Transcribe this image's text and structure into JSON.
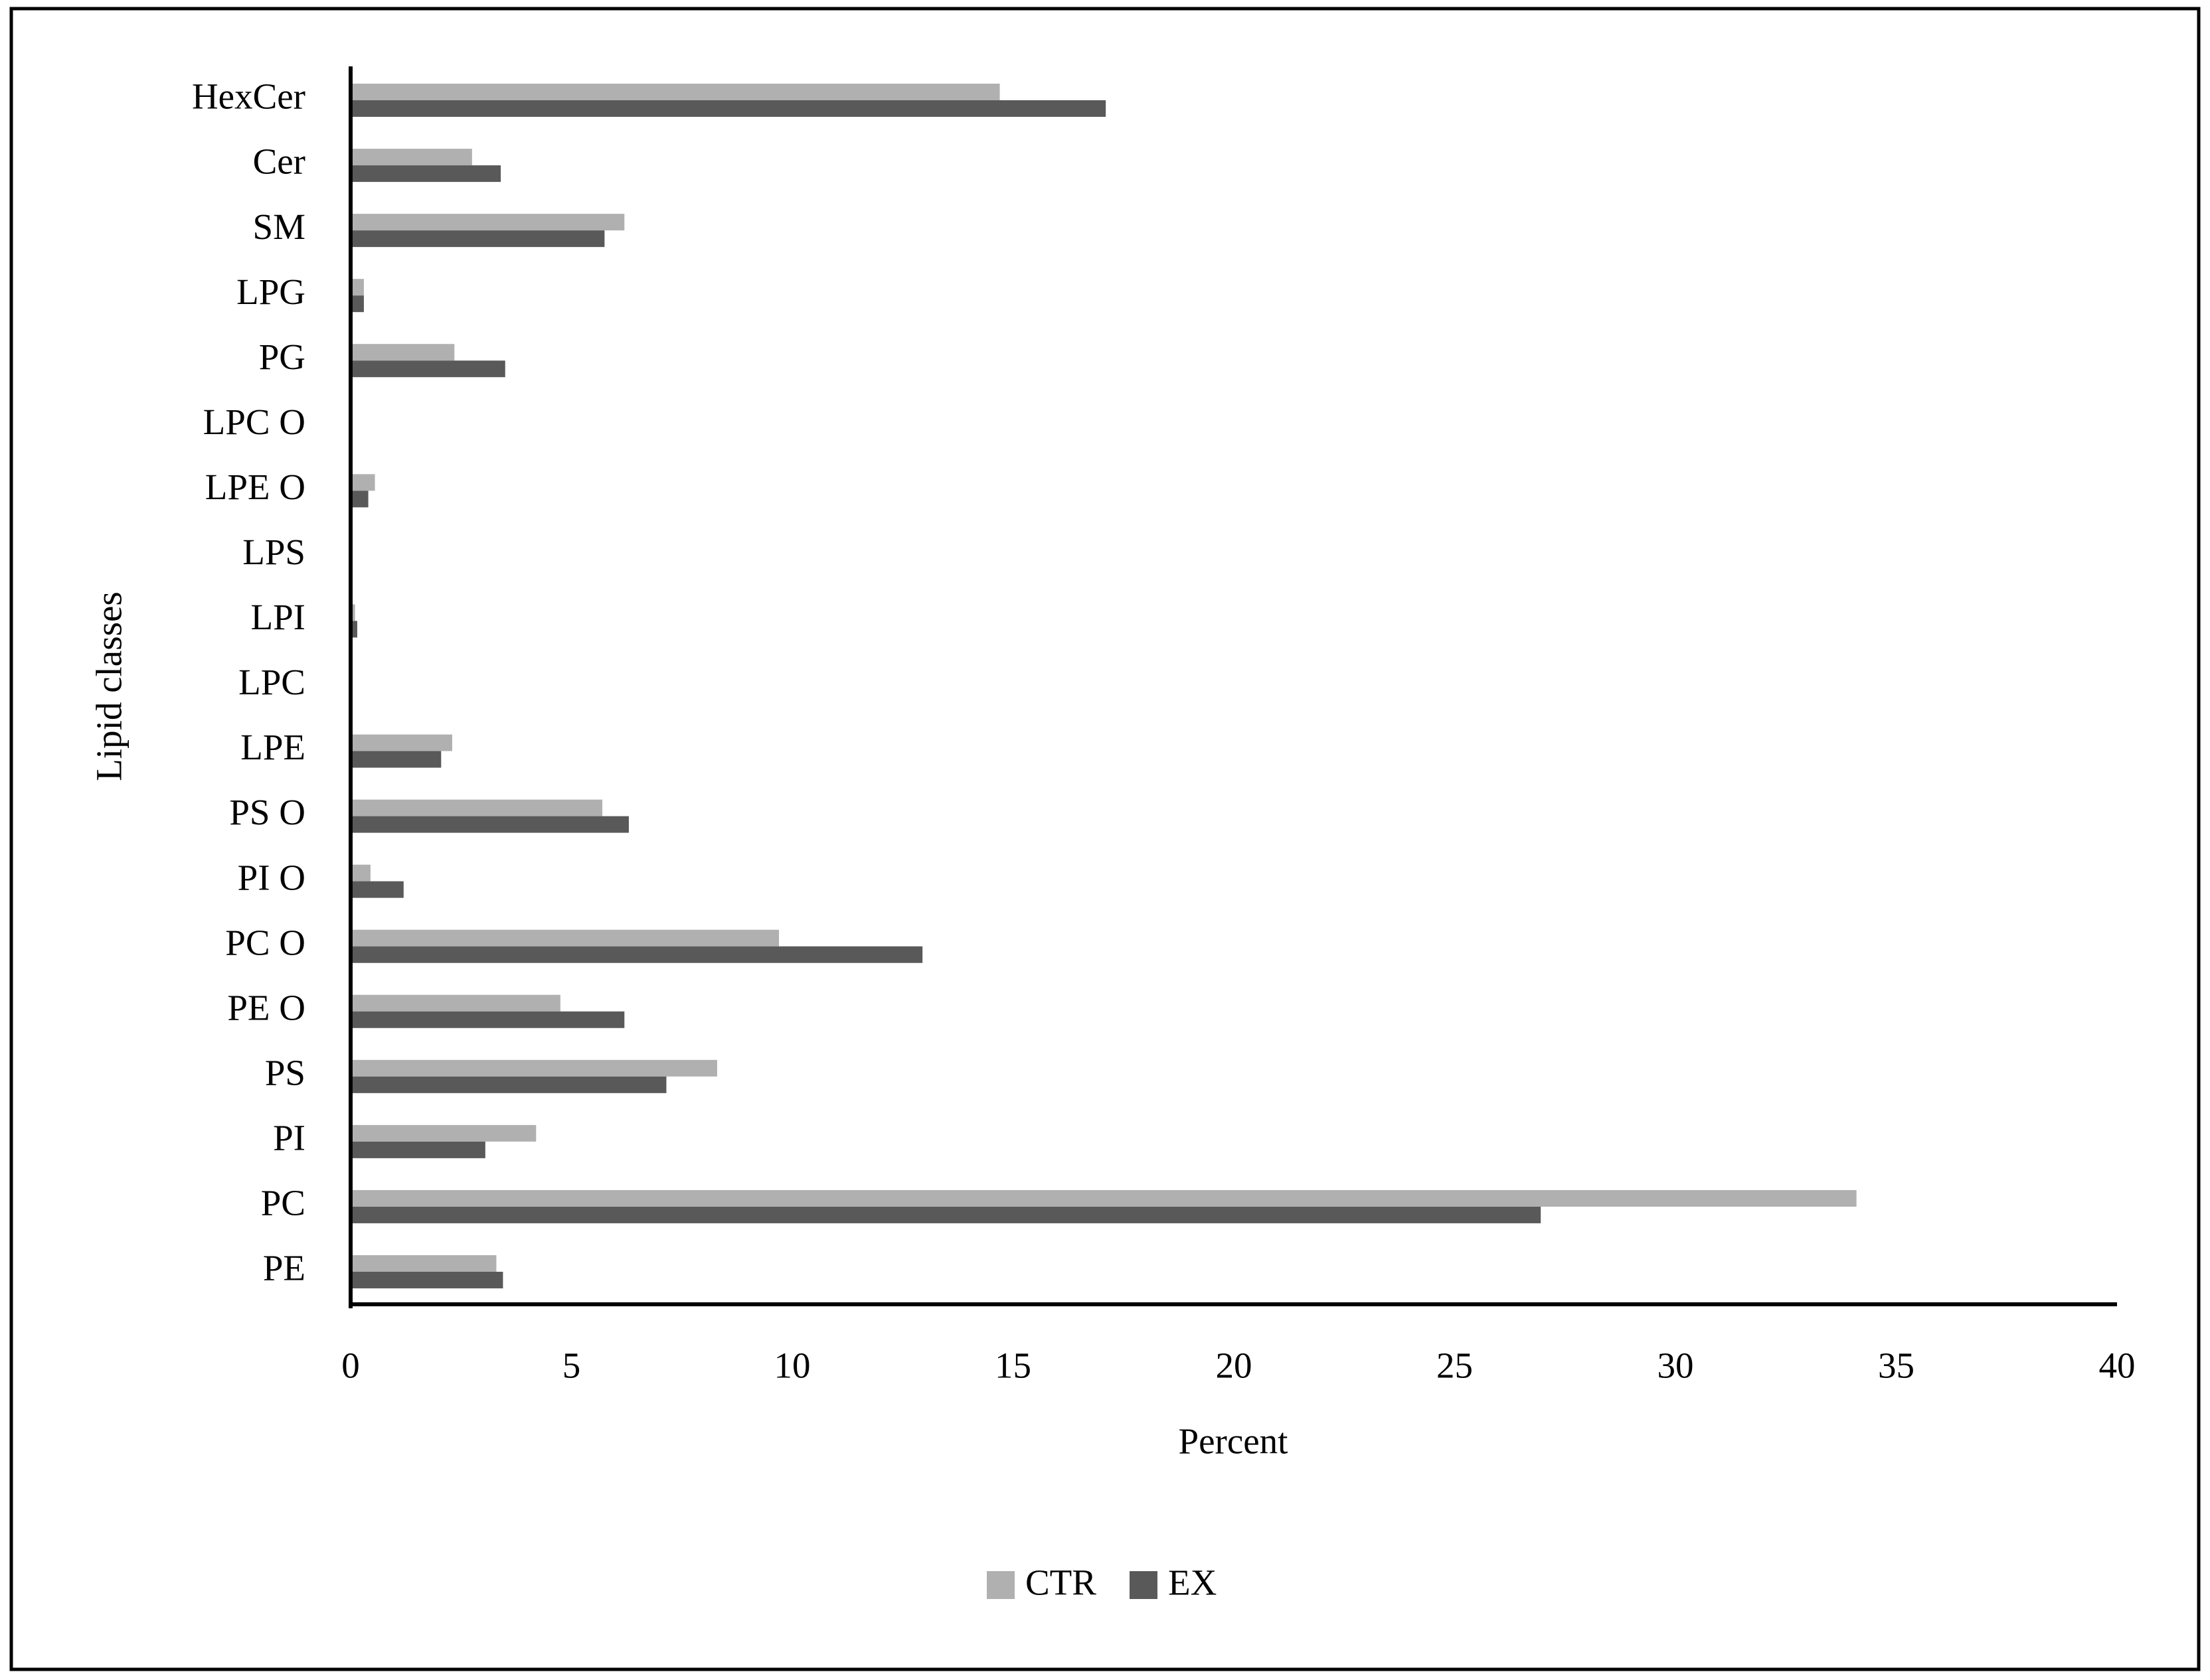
{
  "chart_data": {
    "type": "bar",
    "orientation": "horizontal",
    "x_label": "Percent",
    "y_label": "Lipid classes",
    "categories": [
      "HexCer",
      "Cer",
      "SM",
      "LPG",
      "PG",
      "LPC O",
      "LPE O",
      "LPS",
      "LPI",
      "LPC",
      "LPE",
      "PS O",
      "PI O",
      "PC O",
      "PE O",
      "PS",
      "PI",
      "PC",
      "PE"
    ],
    "series": [
      {
        "name": "CTR",
        "color": "#b0b0b0",
        "values": [
          14.7,
          2.75,
          6.2,
          0.3,
          2.35,
          0,
          0.55,
          0,
          0.1,
          0,
          2.3,
          5.7,
          0.45,
          9.7,
          4.75,
          8.3,
          4.2,
          34.1,
          3.3
        ]
      },
      {
        "name": "EX",
        "color": "#595959",
        "values": [
          17.1,
          3.4,
          5.75,
          0.3,
          3.5,
          0,
          0.4,
          0,
          0.15,
          0,
          2.05,
          6.3,
          1.2,
          12.95,
          6.2,
          7.15,
          3.05,
          26.95,
          3.45
        ]
      }
    ],
    "xlim": [
      0,
      40
    ],
    "xticks": [
      0,
      5,
      10,
      15,
      20,
      25,
      30,
      35,
      40
    ],
    "grid": false,
    "legend": "bottom"
  }
}
